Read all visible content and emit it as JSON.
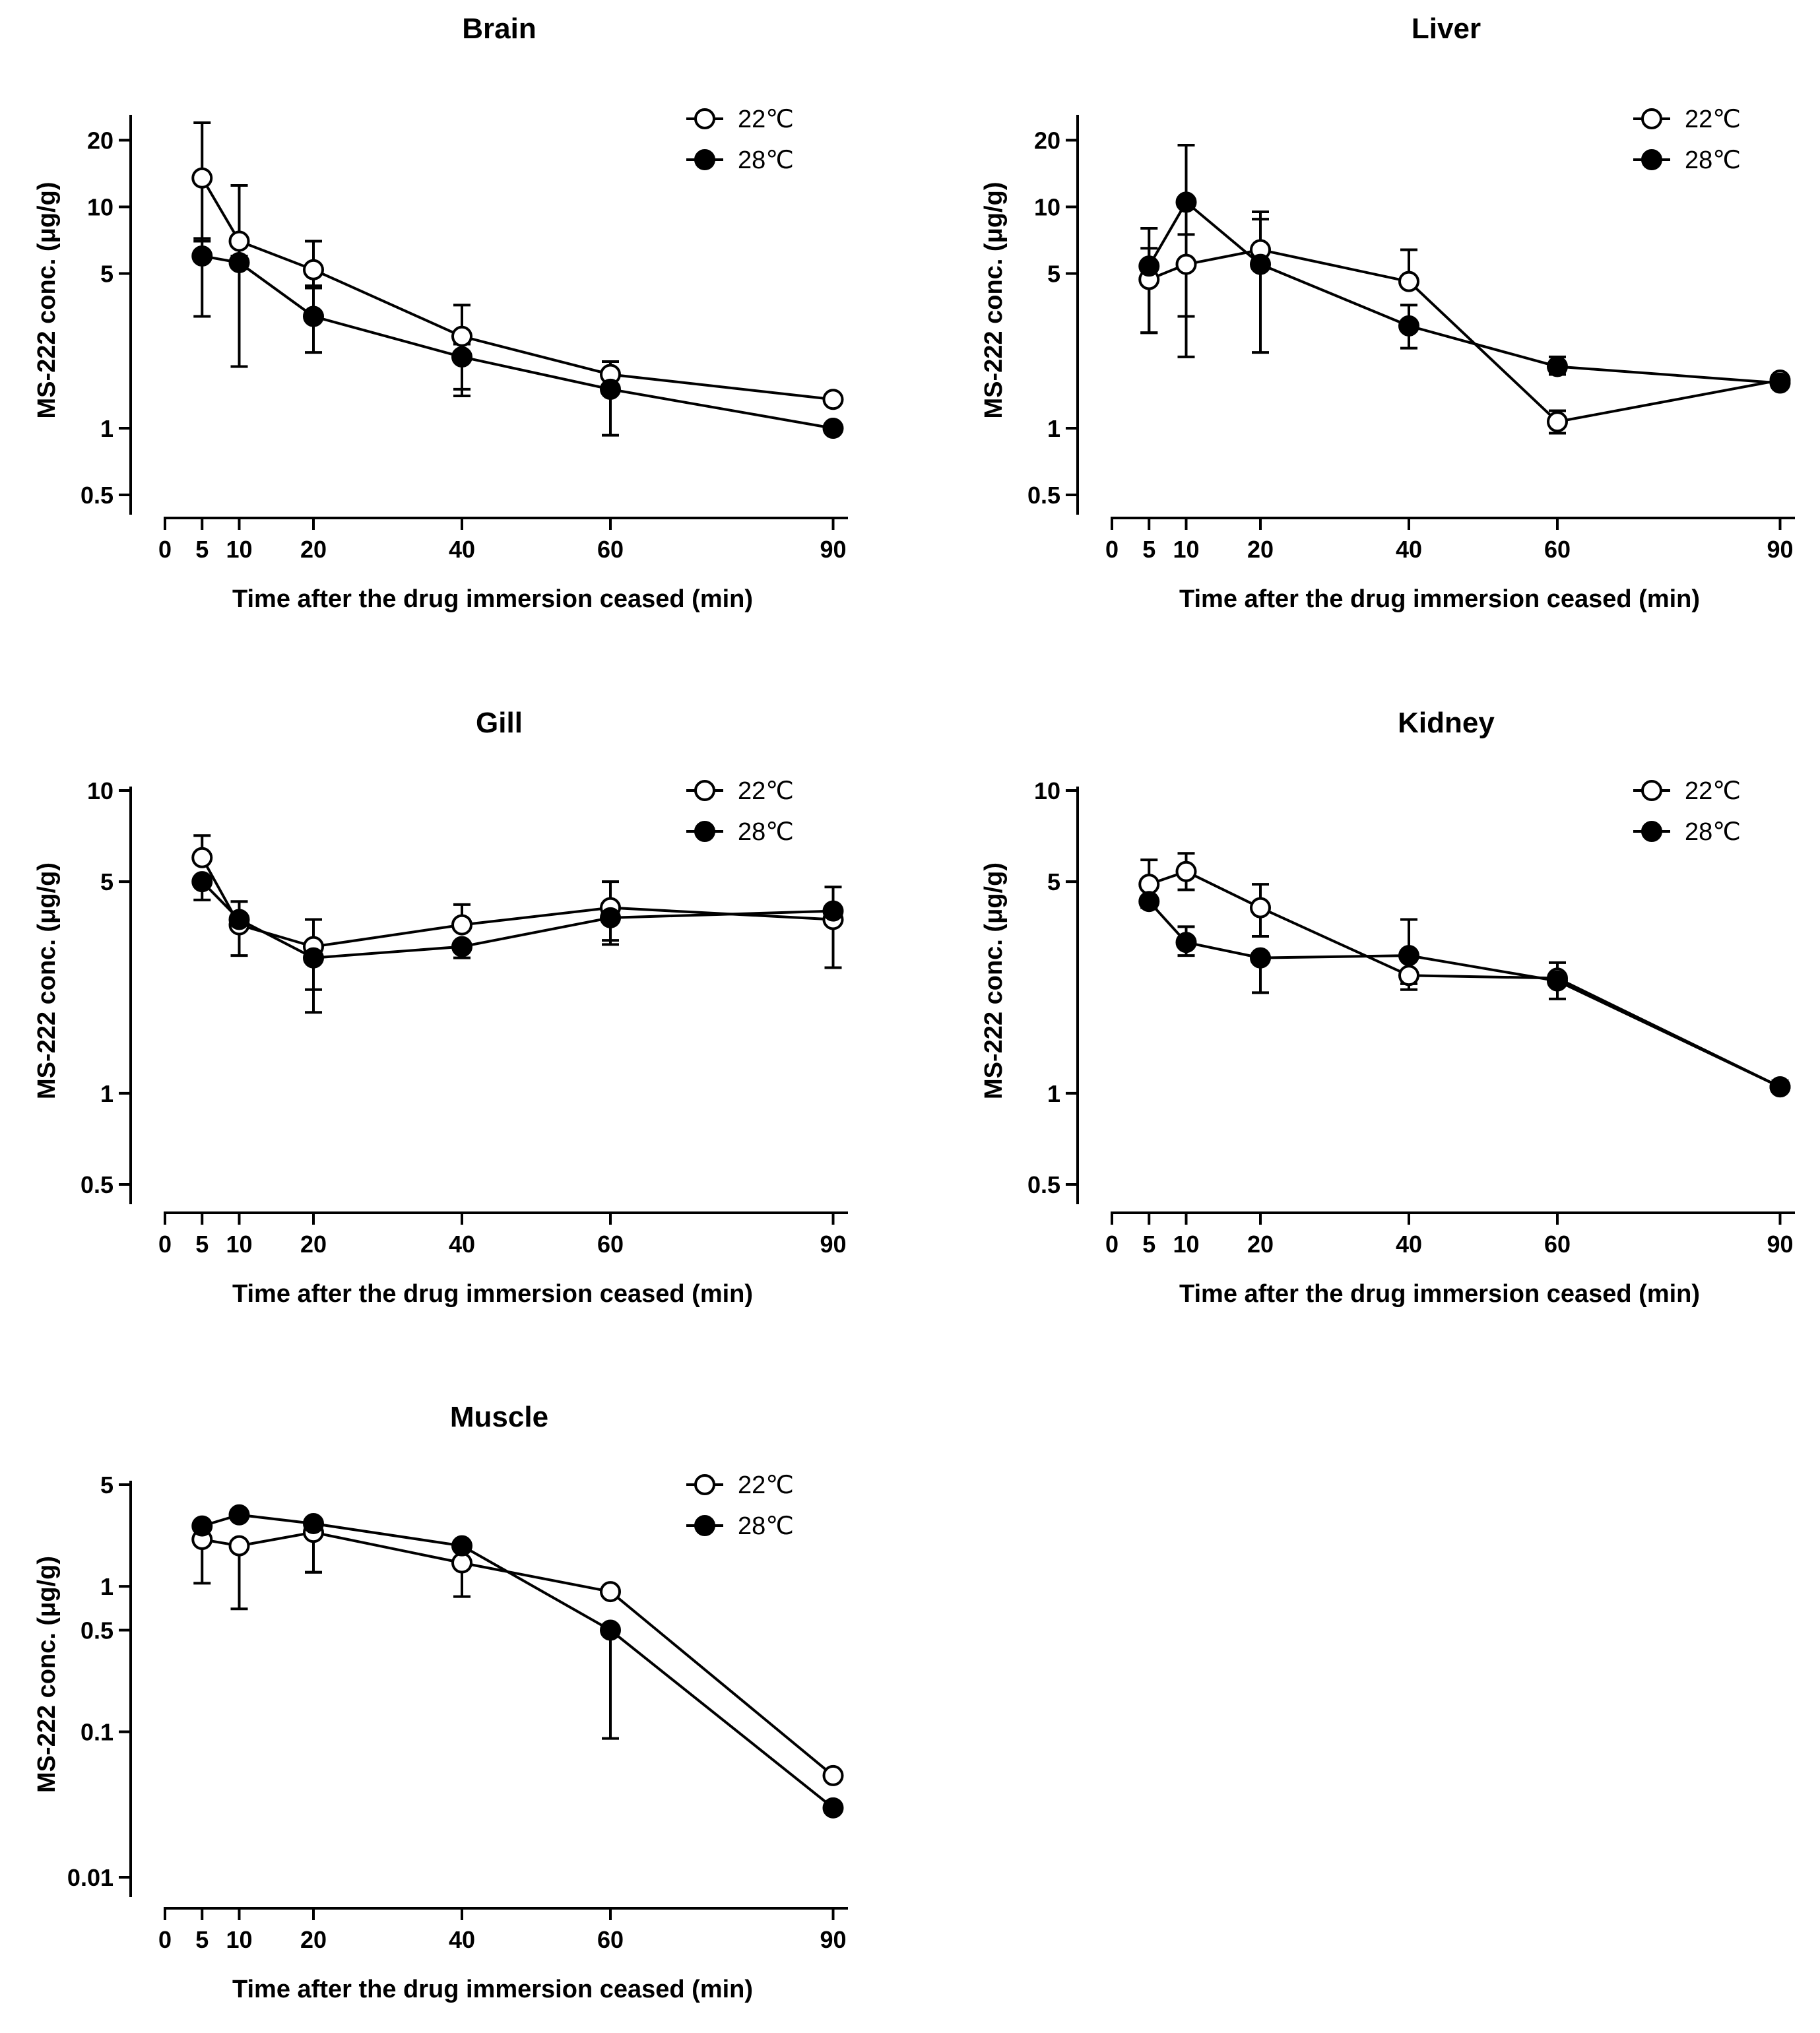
{
  "chart_data": [
    {
      "type": "line",
      "title": "Brain",
      "xlabel": "Time after the drug immersion ceased (min)",
      "ylabel": "MS-222 conc. (μg/g)",
      "yscale": "log",
      "ylim": [
        0.5,
        25
      ],
      "xlim": [
        0,
        92
      ],
      "xticks": [
        0,
        5,
        10,
        20,
        40,
        60,
        90
      ],
      "xtick_labels": [
        "0",
        "5",
        "10",
        "20",
        "40",
        "60",
        "90"
      ],
      "yticks": [
        0.5,
        1,
        5,
        10,
        20
      ],
      "ytick_labels": [
        "0.5",
        "1",
        "5",
        "10",
        "20"
      ],
      "legend": "top-right",
      "x": [
        5,
        10,
        20,
        40,
        60,
        90
      ],
      "series": [
        {
          "name": "22℃",
          "marker": "open-circle",
          "values": [
            13.5,
            7.0,
            5.2,
            2.6,
            1.75,
            1.35
          ],
          "err_low": [
            7.0,
            6.0,
            4.3,
            1.4,
            1.75,
            1.35
          ],
          "err_high": [
            24.0,
            12.5,
            7.0,
            3.6,
            2.0,
            1.35
          ]
        },
        {
          "name": "28℃",
          "marker": "filled-circle",
          "values": [
            6.0,
            5.6,
            3.2,
            2.1,
            1.5,
            1.0
          ],
          "err_low": [
            3.2,
            1.9,
            2.2,
            1.5,
            0.93,
            1.0
          ],
          "err_high": [
            7.2,
            7.0,
            4.4,
            2.4,
            1.5,
            1.0
          ]
        }
      ]
    },
    {
      "type": "line",
      "title": "Liver",
      "xlabel": "Time after the drug immersion ceased (min)",
      "ylabel": "MS-222 conc. (μg/g)",
      "yscale": "log",
      "ylim": [
        0.5,
        25
      ],
      "xlim": [
        0,
        92
      ],
      "xticks": [
        0,
        5,
        10,
        20,
        40,
        60,
        90
      ],
      "xtick_labels": [
        "0",
        "5",
        "10",
        "20",
        "40",
        "60",
        "90"
      ],
      "yticks": [
        0.5,
        1,
        5,
        10,
        20
      ],
      "ytick_labels": [
        "0.5",
        "1",
        "5",
        "10",
        "20"
      ],
      "legend": "top-right",
      "x": [
        5,
        10,
        20,
        40,
        60,
        90
      ],
      "series": [
        {
          "name": "22℃",
          "marker": "open-circle",
          "values": [
            4.7,
            5.5,
            6.4,
            4.6,
            1.07,
            1.65
          ],
          "err_low": [
            2.7,
            2.1,
            6.4,
            4.6,
            0.95,
            1.65
          ],
          "err_high": [
            6.5,
            7.5,
            9.5,
            6.4,
            1.2,
            1.65
          ]
        },
        {
          "name": "28℃",
          "marker": "filled-circle",
          "values": [
            5.4,
            10.5,
            5.5,
            2.9,
            1.9,
            1.6
          ],
          "err_low": [
            2.7,
            3.2,
            2.2,
            2.3,
            1.75,
            1.6
          ],
          "err_high": [
            8.0,
            19.0,
            8.8,
            3.6,
            2.1,
            1.6
          ]
        }
      ]
    },
    {
      "type": "line",
      "title": "Gill",
      "xlabel": "Time after the drug immersion ceased (min)",
      "ylabel": "MS-222 conc. (μg/g)",
      "yscale": "log",
      "ylim": [
        0.5,
        10
      ],
      "xlim": [
        0,
        92
      ],
      "xticks": [
        0,
        5,
        10,
        20,
        40,
        60,
        90
      ],
      "xtick_labels": [
        "0",
        "5",
        "10",
        "20",
        "40",
        "60",
        "90"
      ],
      "yticks": [
        0.5,
        1,
        5,
        10
      ],
      "ytick_labels": [
        "0.5",
        "1",
        "5",
        "10"
      ],
      "legend": "top-right",
      "x": [
        5,
        10,
        20,
        40,
        60,
        90
      ],
      "series": [
        {
          "name": "22℃",
          "marker": "open-circle",
          "values": [
            6.0,
            3.6,
            3.05,
            3.6,
            4.1,
            3.75
          ],
          "err_low": [
            6.0,
            2.85,
            1.85,
            3.6,
            3.1,
            2.6
          ],
          "err_high": [
            7.1,
            3.6,
            3.05,
            4.2,
            5.0,
            3.75
          ]
        },
        {
          "name": "28℃",
          "marker": "filled-circle",
          "values": [
            5.0,
            3.75,
            2.8,
            3.05,
            3.8,
            4.0
          ],
          "err_low": [
            4.35,
            3.75,
            2.2,
            2.8,
            3.2,
            4.0
          ],
          "err_high": [
            5.0,
            4.3,
            3.75,
            3.05,
            3.8,
            4.8
          ]
        }
      ]
    },
    {
      "type": "line",
      "title": "Kidney",
      "xlabel": "Time after the drug immersion ceased (min)",
      "ylabel": "MS-222 conc. (μg/g)",
      "yscale": "log",
      "ylim": [
        0.5,
        10
      ],
      "xlim": [
        0,
        92
      ],
      "xticks": [
        0,
        5,
        10,
        20,
        40,
        60,
        90
      ],
      "xtick_labels": [
        "0",
        "5",
        "10",
        "20",
        "40",
        "60",
        "90"
      ],
      "yticks": [
        0.5,
        1,
        5,
        10
      ],
      "ytick_labels": [
        "0.5",
        "1",
        "5",
        "10"
      ],
      "legend": "top-right",
      "x": [
        5,
        10,
        20,
        40,
        60,
        90
      ],
      "series": [
        {
          "name": "22℃",
          "marker": "open-circle",
          "values": [
            4.9,
            5.4,
            4.1,
            2.45,
            2.4,
            1.05
          ],
          "err_low": [
            4.9,
            4.7,
            3.3,
            2.2,
            2.4,
            1.05
          ],
          "err_high": [
            5.9,
            6.2,
            4.9,
            2.45,
            2.7,
            1.1
          ]
        },
        {
          "name": "28℃",
          "marker": "filled-circle",
          "values": [
            4.3,
            3.15,
            2.8,
            2.85,
            2.35,
            1.05
          ],
          "err_low": [
            4.1,
            2.85,
            2.15,
            2.3,
            2.05,
            1.05
          ],
          "err_high": [
            4.3,
            3.55,
            2.8,
            3.75,
            2.35,
            1.05
          ]
        }
      ]
    },
    {
      "type": "line",
      "title": "Muscle",
      "xlabel": "Time after the drug immersion ceased (min)",
      "ylabel": "MS-222 conc. (μg/g)",
      "yscale": "log",
      "ylim": [
        0.01,
        5
      ],
      "xlim": [
        0,
        92
      ],
      "xticks": [
        0,
        5,
        10,
        20,
        40,
        60,
        90
      ],
      "xtick_labels": [
        "0",
        "5",
        "10",
        "20",
        "40",
        "60",
        "90"
      ],
      "yticks": [
        0.01,
        0.1,
        0.5,
        1,
        5
      ],
      "ytick_labels": [
        "0.01",
        "0.1",
        "0.5",
        "1",
        "5"
      ],
      "legend": "top-right",
      "x": [
        5,
        10,
        20,
        40,
        60,
        90
      ],
      "series": [
        {
          "name": "22℃",
          "marker": "open-circle",
          "values": [
            2.1,
            1.9,
            2.35,
            1.45,
            0.92,
            0.05
          ],
          "err_low": [
            1.05,
            0.7,
            1.25,
            0.85,
            0.92,
            0.05
          ],
          "err_high": [
            2.1,
            1.9,
            2.35,
            1.45,
            0.92,
            0.05
          ]
        },
        {
          "name": "28℃",
          "marker": "filled-circle",
          "values": [
            2.6,
            3.1,
            2.7,
            1.9,
            0.5,
            0.03
          ],
          "err_low": [
            2.6,
            3.1,
            1.25,
            1.9,
            0.09,
            0.03
          ],
          "err_high": [
            2.6,
            3.1,
            2.7,
            1.9,
            0.5,
            0.03
          ]
        }
      ]
    }
  ]
}
